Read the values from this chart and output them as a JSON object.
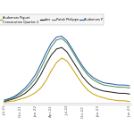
{
  "legend_labels": [
    "Audemars Piguet\nConsecutive Quarter 2",
    "alex",
    "Patek Philippe",
    "Audemars P"
  ],
  "line_colors": [
    "#c8a000",
    "#1a1a1a",
    "#4a8c50",
    "#2255aa"
  ],
  "x_labels": [
    "Jul-21",
    "Oct-21",
    "Jan-22",
    "Apr-22",
    "Jul-22",
    "Oct-22",
    "Jan-23",
    "Jun-23"
  ],
  "background_color": "#ffffff",
  "data": {
    "gold": [
      0.01,
      0.02,
      0.03,
      0.05,
      0.07,
      0.1,
      0.14,
      0.2,
      0.3,
      0.43,
      0.54,
      0.6,
      0.56,
      0.46,
      0.35,
      0.25,
      0.17,
      0.12,
      0.09,
      0.07,
      0.05,
      0.04,
      0.03,
      0.03,
      0.02
    ],
    "black": [
      0.02,
      0.04,
      0.06,
      0.09,
      0.13,
      0.19,
      0.27,
      0.38,
      0.52,
      0.64,
      0.72,
      0.74,
      0.68,
      0.57,
      0.46,
      0.35,
      0.27,
      0.21,
      0.18,
      0.16,
      0.15,
      0.14,
      0.13,
      0.13,
      0.12
    ],
    "green": [
      0.03,
      0.05,
      0.08,
      0.12,
      0.17,
      0.24,
      0.33,
      0.46,
      0.61,
      0.75,
      0.84,
      0.86,
      0.8,
      0.69,
      0.57,
      0.46,
      0.37,
      0.31,
      0.27,
      0.24,
      0.23,
      0.22,
      0.21,
      0.21,
      0.2
    ],
    "blue": [
      0.04,
      0.06,
      0.09,
      0.14,
      0.2,
      0.28,
      0.38,
      0.52,
      0.67,
      0.8,
      0.88,
      0.89,
      0.83,
      0.72,
      0.6,
      0.49,
      0.4,
      0.34,
      0.3,
      0.27,
      0.26,
      0.25,
      0.24,
      0.24,
      0.23
    ]
  },
  "x_tick_positions": [
    0,
    3,
    6,
    9,
    12,
    15,
    18,
    24
  ],
  "n_points": 25
}
